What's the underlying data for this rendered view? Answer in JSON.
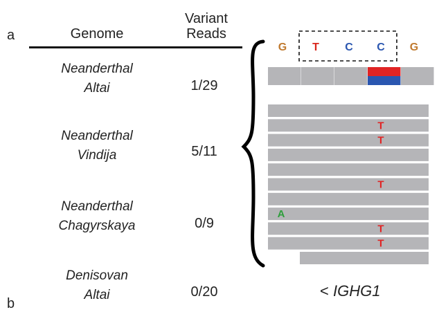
{
  "panel_a": "a",
  "panel_b": "b",
  "header": {
    "genome": "Genome",
    "variant_reads_line1": "Variant",
    "variant_reads_line2": "Reads"
  },
  "rows": [
    {
      "line1": "Neanderthal",
      "line2": "Altai",
      "reads": "1/29"
    },
    {
      "line1": "Neanderthal",
      "line2": "Vindija",
      "reads": "5/11"
    },
    {
      "line1": "Neanderthal",
      "line2": "Chagyrskaya",
      "reads": "0/9"
    },
    {
      "line1": "Denisovan",
      "line2": "Altai",
      "reads": "0/20"
    }
  ],
  "reference_bases": [
    {
      "base": "G",
      "color": "#c07a2f"
    },
    {
      "base": "T",
      "color": "#d9261c"
    },
    {
      "base": "C",
      "color": "#2a56b0"
    },
    {
      "base": "C",
      "color": "#2a56b0"
    },
    {
      "base": "G",
      "color": "#c07a2f"
    }
  ],
  "coverage_variant_colors": {
    "top": "#e02424",
    "bottom": "#2a56b0"
  },
  "read_mismatches": [
    {
      "read": 1,
      "col": 3,
      "base": "T"
    },
    {
      "read": 2,
      "col": 3,
      "base": "T"
    },
    {
      "read": 5,
      "col": 3,
      "base": "T"
    },
    {
      "read": 7,
      "col": 0,
      "base": "A"
    },
    {
      "read": 8,
      "col": 3,
      "base": "T"
    },
    {
      "read": 9,
      "col": 3,
      "base": "T"
    }
  ],
  "mismatch_colors": {
    "T": "#e02424",
    "A": "#2e9e3c"
  },
  "read_color": "#b5b5b8",
  "gene": {
    "prefix": "< ",
    "name": "IGHG1"
  }
}
